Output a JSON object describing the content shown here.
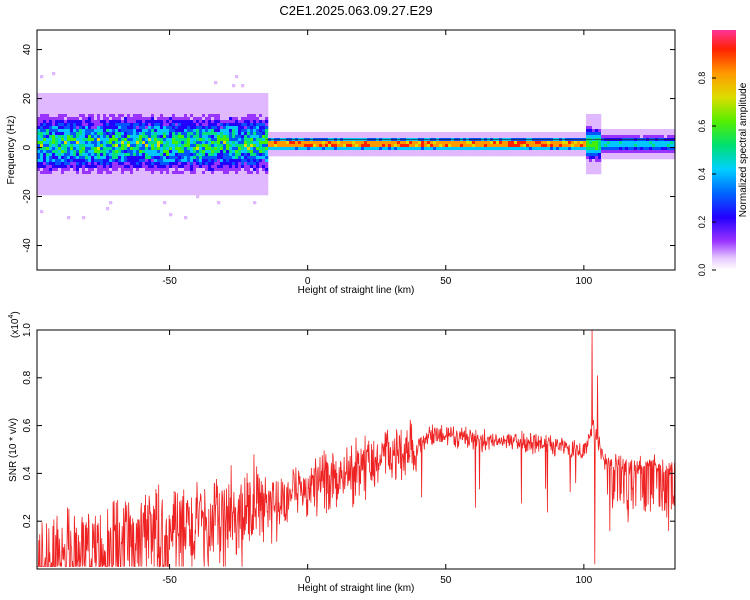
{
  "title": "C2E1.2025.063.09.27.E29",
  "colors": {
    "background": "#ffffff",
    "spectrogram_bg": "#ffffff",
    "snr_line": "#ee2222",
    "axis": "#000000",
    "colormap": [
      "#ffffff",
      "#e0b8ff",
      "#9933ff",
      "#2200ff",
      "#0055ff",
      "#00c8ff",
      "#00e080",
      "#44ee00",
      "#dddd00",
      "#ff9900",
      "#ff2200",
      "#ff3399"
    ]
  },
  "chart_data": [
    {
      "type": "heatmap",
      "title": "C2E1.2025.063.09.27.E29",
      "xlabel": "Height of straight line (km)",
      "ylabel": "Frequency (Hz)",
      "xlim": [
        -98,
        133
      ],
      "ylim": [
        -50,
        48
      ],
      "xticks": [
        -50,
        0,
        50,
        100
      ],
      "yticks": [
        -40,
        -20,
        0,
        20,
        40
      ],
      "colorbar": {
        "label": "Normalized spectral amplitude",
        "range": [
          0,
          1
        ],
        "ticks": [
          "0.0",
          "0.2",
          "0.4",
          "0.6",
          "0.8"
        ],
        "tick_values": [
          0.0,
          0.2,
          0.4,
          0.6,
          0.8
        ]
      },
      "ridge": {
        "description_values": "dominant frequency band near ~2 Hz across the full height range",
        "center_frequency_hz": 2,
        "segments": [
          {
            "x_start": -98,
            "x_end": -15,
            "half_width_hz": 7,
            "amplitude": 0.55
          },
          {
            "x_start": -15,
            "x_end": 100,
            "half_width_hz": 1.5,
            "amplitude": 0.9
          },
          {
            "x_start": 100,
            "x_end": 106,
            "half_width_hz": 4,
            "amplitude": 0.6
          },
          {
            "x_start": 106,
            "x_end": 133,
            "half_width_hz": 2,
            "amplitude": 0.5
          }
        ]
      }
    },
    {
      "type": "line",
      "xlabel": "Height of straight line (km)",
      "ylabel": "SNR (10 * v/v)",
      "y_multiplier_label": "(x10",
      "y_multiplier_exp": "4",
      "xlim": [
        -98,
        133
      ],
      "ylim": [
        0,
        1.0
      ],
      "xticks": [
        -50,
        0,
        50,
        100
      ],
      "yticks": [
        0.2,
        0.4,
        0.6,
        0.8,
        1.0
      ],
      "series": [
        {
          "color": "#ee2222",
          "envelope_x": [
            -98,
            -80,
            -60,
            -40,
            -20,
            -10,
            0,
            10,
            20,
            30,
            40,
            46,
            60,
            80,
            95,
            100,
            103,
            108,
            115,
            125,
            133
          ],
          "envelope_y": [
            0.04,
            0.08,
            0.13,
            0.2,
            0.26,
            0.3,
            0.35,
            0.4,
            0.46,
            0.5,
            0.53,
            0.57,
            0.55,
            0.54,
            0.52,
            0.5,
            0.6,
            0.45,
            0.44,
            0.44,
            0.43
          ],
          "peaks": [
            {
              "x": 103,
              "y": 1.0
            },
            {
              "x": 105,
              "y": 0.81
            },
            {
              "x": 104,
              "y": 0.02
            }
          ]
        }
      ]
    }
  ]
}
